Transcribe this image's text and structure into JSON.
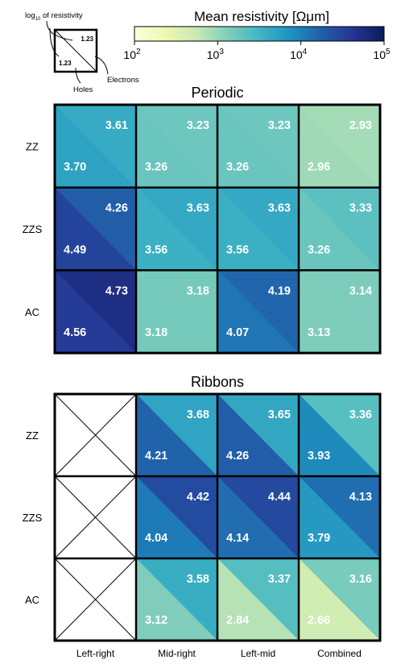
{
  "chart_data": {
    "type": "heatmap",
    "colorbar": {
      "title": "Mean resistivity [Ωμm]",
      "scale": "log",
      "range": [
        100,
        100000
      ],
      "ticks": [
        {
          "value": 100,
          "base": "10",
          "exp": "2"
        },
        {
          "value": 1000,
          "base": "10",
          "exp": "3"
        },
        {
          "value": 10000,
          "base": "10",
          "exp": "4"
        },
        {
          "value": 100000,
          "base": "10",
          "exp": "5"
        }
      ],
      "colormap": [
        "#ffffd9",
        "#edf8b1",
        "#c7e9b4",
        "#7fcdbb",
        "#41b6c4",
        "#1d91c0",
        "#225ea8",
        "#253494",
        "#081d58"
      ]
    },
    "legend_key": {
      "sample_value": "1.23",
      "label_log": "log",
      "label_log_sub": "10",
      "label_log_rest": " of resistivity",
      "label_holes": "Holes",
      "label_electrons": "Electrons"
    },
    "column_labels": [
      "Left-right",
      "Mid-right",
      "Left-mid",
      "Combined"
    ],
    "panels": [
      {
        "title": "Periodic",
        "rows": [
          "ZZ",
          "ZZS",
          "AC"
        ],
        "cells": [
          [
            {
              "electrons": 3.61,
              "holes": 3.7
            },
            {
              "electrons": 3.23,
              "holes": 3.26
            },
            {
              "electrons": 3.23,
              "holes": 3.26
            },
            {
              "electrons": 2.93,
              "holes": 2.96
            }
          ],
          [
            {
              "electrons": 4.26,
              "holes": 4.49
            },
            {
              "electrons": 3.63,
              "holes": 3.56
            },
            {
              "electrons": 3.63,
              "holes": 3.56
            },
            {
              "electrons": 3.33,
              "holes": 3.26
            }
          ],
          [
            {
              "electrons": 4.73,
              "holes": 4.56
            },
            {
              "electrons": 3.18,
              "holes": 3.18
            },
            {
              "electrons": 4.19,
              "holes": 4.07
            },
            {
              "electrons": 3.14,
              "holes": 3.13
            }
          ]
        ]
      },
      {
        "title": "Ribbons",
        "rows": [
          "ZZ",
          "ZZS",
          "AC"
        ],
        "cells": [
          [
            null,
            {
              "electrons": 3.68,
              "holes": 4.21
            },
            {
              "electrons": 3.65,
              "holes": 4.26
            },
            {
              "electrons": 3.36,
              "holes": 3.93
            }
          ],
          [
            null,
            {
              "electrons": 4.42,
              "holes": 4.04
            },
            {
              "electrons": 4.44,
              "holes": 4.14
            },
            {
              "electrons": 4.13,
              "holes": 3.79
            }
          ],
          [
            null,
            {
              "electrons": 3.58,
              "holes": 3.12
            },
            {
              "electrons": 3.37,
              "holes": 2.84
            },
            {
              "electrons": 3.16,
              "holes": 2.66
            }
          ]
        ]
      }
    ]
  }
}
